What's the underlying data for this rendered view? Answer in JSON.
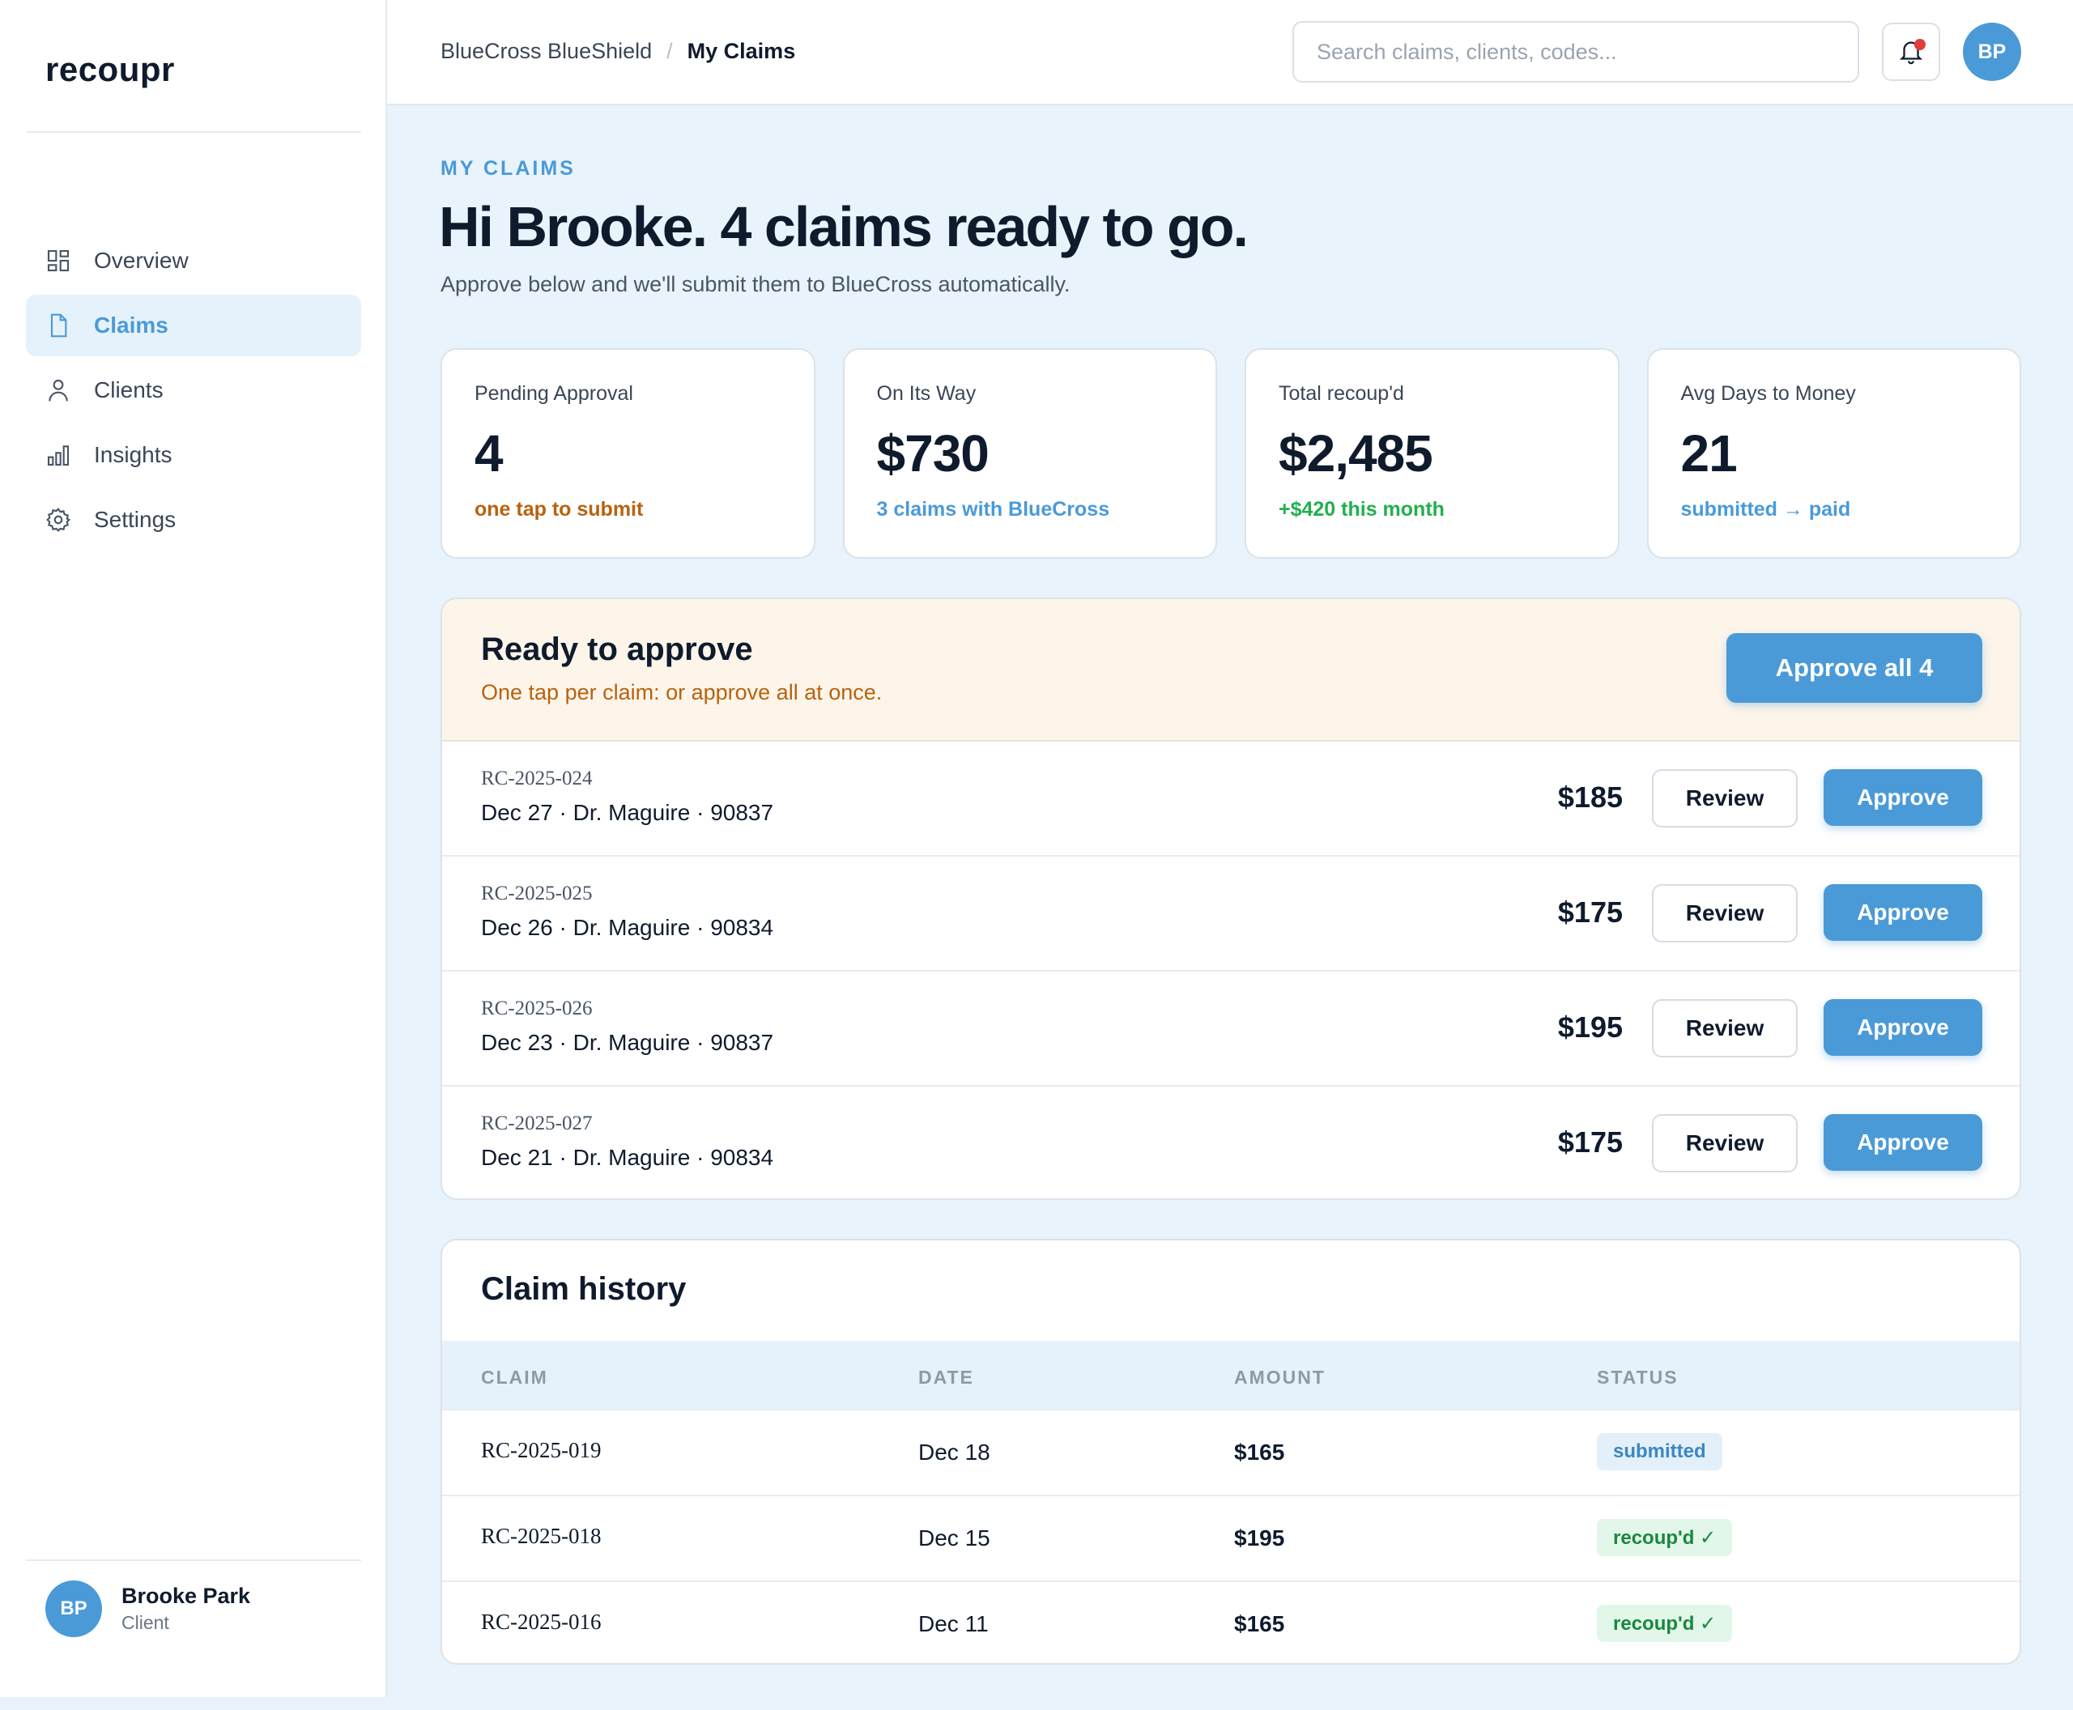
{
  "app": {
    "logo": "recoupr"
  },
  "sidebar": {
    "items": [
      {
        "label": "Overview",
        "icon": "grid-icon"
      },
      {
        "label": "Claims",
        "icon": "document-icon",
        "active": true
      },
      {
        "label": "Clients",
        "icon": "person-icon"
      },
      {
        "label": "Insights",
        "icon": "bar-chart-icon"
      },
      {
        "label": "Settings",
        "icon": "gear-icon"
      }
    ],
    "user": {
      "initials": "BP",
      "name": "Brooke Park",
      "role": "Client"
    }
  },
  "topbar": {
    "breadcrumb": {
      "parent": "BlueCross BlueShield",
      "separator": "/",
      "current": "My Claims"
    },
    "search": {
      "placeholder": "Search claims, clients, codes..."
    },
    "avatar": "BP"
  },
  "page": {
    "eyebrow": "MY CLAIMS",
    "title": "Hi Brooke. 4 claims ready to go.",
    "subtitle": "Approve below and we'll submit them to BlueCross automatically."
  },
  "stats": [
    {
      "label": "Pending Approval",
      "value": "4",
      "note": "one tap to submit",
      "note_color": "#b8620f"
    },
    {
      "label": "On Its Way",
      "value": "$730",
      "note": "3 claims with BlueCross",
      "note_color": "#4a9ad8"
    },
    {
      "label": "Total recoup'd",
      "value": "$2,485",
      "note": "+$420 this month",
      "note_color": "#22b04f"
    },
    {
      "label": "Avg Days to Money",
      "value": "21",
      "note": "submitted → paid",
      "note_color": "#4a9ad8"
    }
  ],
  "ready": {
    "title": "Ready to approve",
    "subtitle": "One tap per claim: or approve all at once.",
    "approve_all_label": "Approve all 4",
    "review_label": "Review",
    "approve_label": "Approve",
    "claims": [
      {
        "id": "RC-2025-024",
        "meta": "Dec 27 · Dr. Maguire · 90837",
        "amount": "$185"
      },
      {
        "id": "RC-2025-025",
        "meta": "Dec 26 · Dr. Maguire · 90834",
        "amount": "$175"
      },
      {
        "id": "RC-2025-026",
        "meta": "Dec 23 · Dr. Maguire · 90837",
        "amount": "$195"
      },
      {
        "id": "RC-2025-027",
        "meta": "Dec 21 · Dr. Maguire · 90834",
        "amount": "$175"
      }
    ]
  },
  "history": {
    "title": "Claim history",
    "columns": [
      "CLAIM",
      "DATE",
      "AMOUNT",
      "STATUS"
    ],
    "rows": [
      {
        "claim": "RC-2025-019",
        "date": "Dec 18",
        "amount": "$165",
        "status": "submitted",
        "status_type": "submitted"
      },
      {
        "claim": "RC-2025-018",
        "date": "Dec 15",
        "amount": "$195",
        "status": "recoup'd ✓",
        "status_type": "paid"
      },
      {
        "claim": "RC-2025-016",
        "date": "Dec 11",
        "amount": "$165",
        "status": "recoup'd ✓",
        "status_type": "paid"
      }
    ]
  },
  "colors": {
    "accent": "#4a9ad8",
    "warning": "#b8620f",
    "success": "#22b04f",
    "alert_dot": "#e23c3c"
  }
}
